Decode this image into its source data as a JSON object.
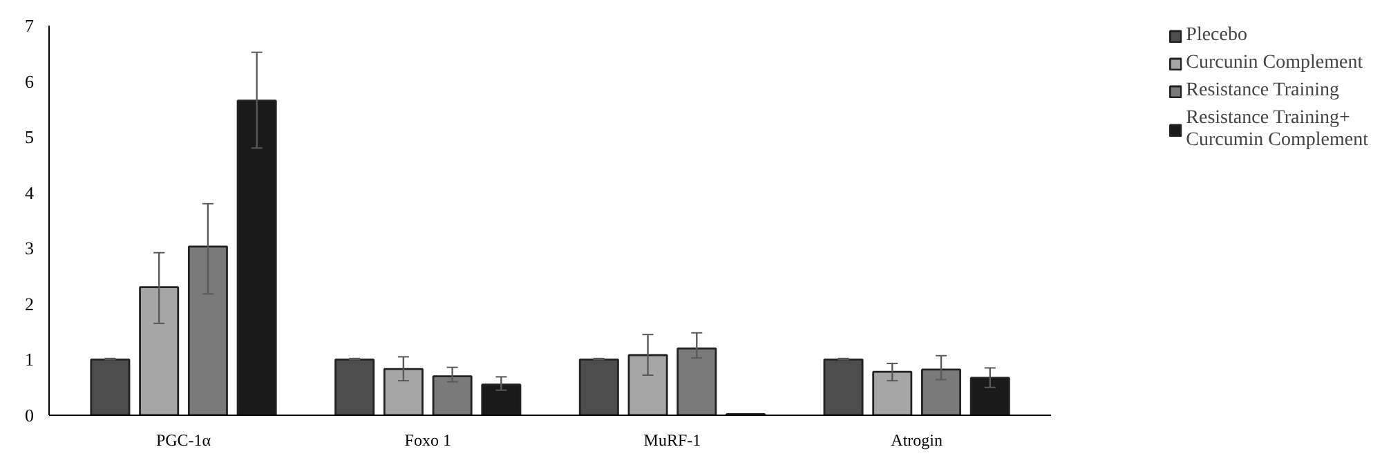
{
  "chart_data": {
    "type": "bar",
    "categories": [
      "PGC-1α",
      "Foxo 1",
      "MuRF-1",
      "Atrogin"
    ],
    "series": [
      {
        "name": "Plecebo",
        "color": "#4d4d4d",
        "values": [
          1.0,
          1.0,
          1.0,
          1.0
        ],
        "errors": [
          [
            1.0,
            1.02
          ],
          [
            1.0,
            1.02
          ],
          [
            1.0,
            1.02
          ],
          [
            1.0,
            1.02
          ]
        ]
      },
      {
        "name": "Curcunin Complement",
        "color": "#a6a6a6",
        "values": [
          2.3,
          0.83,
          1.08,
          0.78
        ],
        "errors": [
          [
            1.65,
            2.92
          ],
          [
            0.62,
            1.05
          ],
          [
            0.72,
            1.45
          ],
          [
            0.62,
            0.93
          ]
        ]
      },
      {
        "name": "Resistance Training",
        "color": "#7a7a7a",
        "values": [
          3.03,
          0.7,
          1.2,
          0.82
        ],
        "errors": [
          [
            2.18,
            3.8
          ],
          [
            0.6,
            0.86
          ],
          [
            1.03,
            1.48
          ],
          [
            0.64,
            1.07
          ]
        ]
      },
      {
        "name": "Resistance Training+ Curcumin Complement",
        "color": "#1a1a1a",
        "values": [
          5.65,
          0.55,
          0.02,
          0.67
        ],
        "errors": [
          [
            4.8,
            6.52
          ],
          [
            0.45,
            0.69
          ],
          null,
          [
            0.5,
            0.85
          ]
        ]
      }
    ],
    "ylim": [
      0,
      7
    ],
    "yticks": [
      0,
      1,
      2,
      3,
      4,
      5,
      6,
      7
    ],
    "grid": false,
    "legend": "right"
  }
}
